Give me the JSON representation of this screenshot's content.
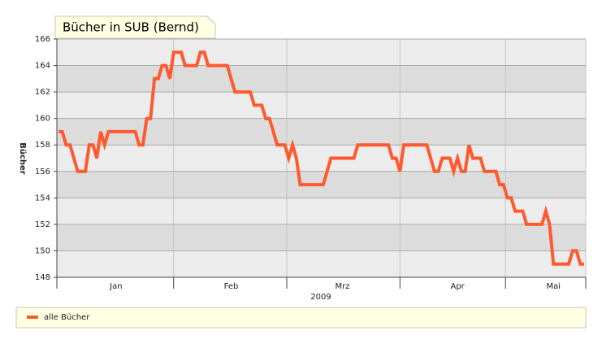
{
  "chart_data": {
    "type": "line",
    "title": "Bücher in SUB (Bernd)",
    "ylabel": "Bücher",
    "xlabel": "2009",
    "categories": [
      null,
      null,
      null,
      null,
      null,
      null,
      null,
      null,
      null,
      null,
      null,
      null,
      null,
      null,
      null,
      "Jan",
      null,
      null,
      null,
      null,
      null,
      null,
      null,
      null,
      null,
      null,
      null,
      null,
      null,
      null,
      null,
      null,
      null,
      null,
      null,
      null,
      null,
      null,
      null,
      null,
      null,
      null,
      null,
      null,
      null,
      "Feb",
      null,
      null,
      null,
      null,
      null,
      null,
      null,
      null,
      null,
      null,
      null,
      null,
      null,
      null,
      null,
      null,
      null,
      null,
      null,
      null,
      null,
      null,
      null,
      null,
      null,
      null,
      null,
      null,
      "Mrz",
      null,
      null,
      null,
      null,
      null,
      null,
      null,
      null,
      null,
      null,
      null,
      null,
      null,
      null,
      null,
      null,
      null,
      null,
      null,
      null,
      null,
      null,
      null,
      null,
      null,
      null,
      null,
      null,
      null,
      "Apr",
      null,
      null,
      null,
      null,
      null,
      null,
      null,
      null,
      null,
      null,
      null,
      null,
      null,
      null,
      null,
      null,
      null,
      null,
      null,
      null,
      null,
      null,
      null,
      null,
      "Mai",
      null,
      null,
      null,
      null,
      null,
      null,
      null,
      null
    ],
    "series": [
      {
        "name": "alle Bücher",
        "color": "#ff5a2e",
        "values": [
          159,
          159,
          158,
          158,
          157,
          156,
          156,
          156,
          158,
          158,
          157,
          159,
          158,
          159,
          159,
          159,
          159,
          159,
          159,
          159,
          159,
          158,
          158,
          160,
          160,
          163,
          163,
          164,
          164,
          163,
          165,
          165,
          165,
          164,
          164,
          164,
          164,
          165,
          165,
          164,
          164,
          164,
          164,
          164,
          164,
          163,
          162,
          162,
          162,
          162,
          162,
          161,
          161,
          161,
          160,
          160,
          159,
          158,
          158,
          158,
          157,
          158,
          157,
          155,
          155,
          155,
          155,
          155,
          155,
          155,
          156,
          157,
          157,
          157,
          157,
          157,
          157,
          157,
          158,
          158,
          158,
          158,
          158,
          158,
          158,
          158,
          158,
          157,
          157,
          156,
          158,
          158,
          158,
          158,
          158,
          158,
          158,
          157,
          156,
          156,
          157,
          157,
          157,
          156,
          157,
          156,
          156,
          158,
          157,
          157,
          157,
          156,
          156,
          156,
          156,
          155,
          155,
          154,
          154,
          153,
          153,
          153,
          152,
          152,
          152,
          152,
          152,
          153,
          152,
          149,
          149,
          149,
          149,
          149,
          150,
          150,
          149,
          149
        ]
      }
    ],
    "ylim": [
      148,
      166
    ],
    "yticks": [
      148,
      150,
      152,
      154,
      156,
      158,
      160,
      162,
      164,
      166
    ],
    "grid": true
  }
}
